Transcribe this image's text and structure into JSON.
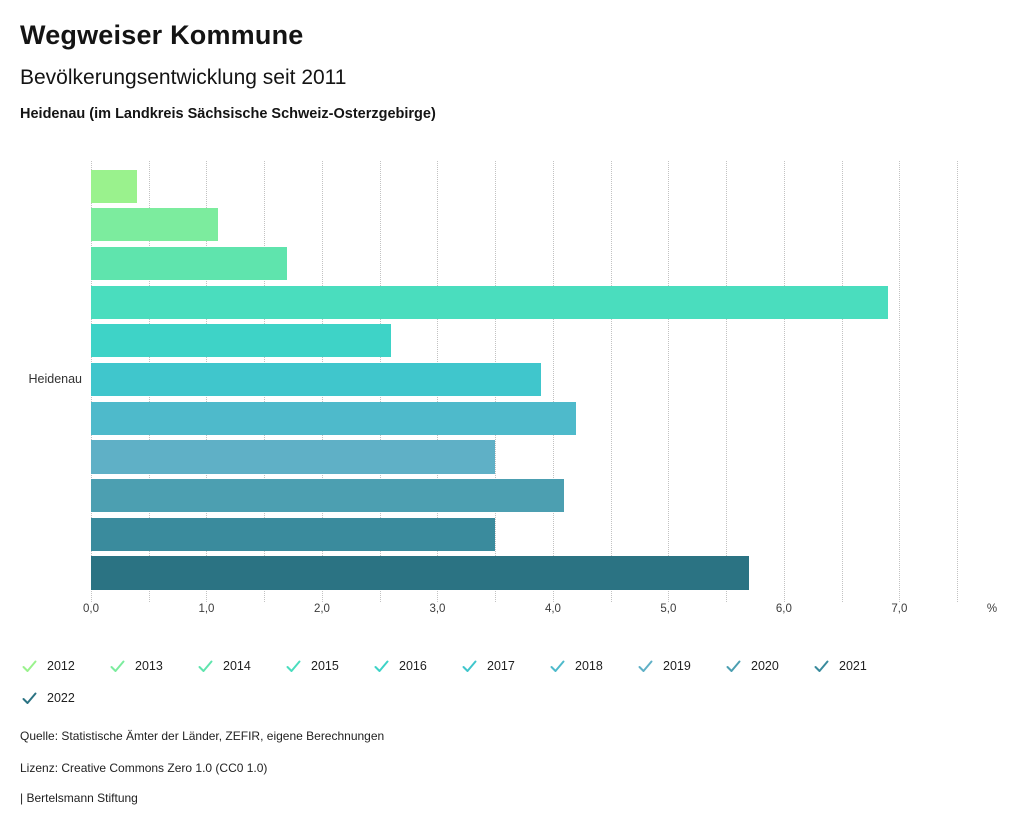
{
  "header": {
    "title": "Wegweiser Kommune",
    "subtitle": "Bevölkerungsentwicklung seit 2011",
    "location": "Heidenau (im Landkreis Sächsische Schweiz-Osterzgebirge)"
  },
  "chart_data": {
    "type": "bar",
    "orientation": "horizontal",
    "category": "Heidenau",
    "title": "Bevölkerungsentwicklung seit 2011",
    "xlabel": "%",
    "ylabel": "Heidenau",
    "xlim": [
      0,
      7.75
    ],
    "grid_step": 0.5,
    "grid_max": 7.5,
    "grid": "dotted-vertical",
    "x_ticks": [
      {
        "value": 0,
        "label": "0,0"
      },
      {
        "value": 1,
        "label": "1,0"
      },
      {
        "value": 2,
        "label": "2,0"
      },
      {
        "value": 3,
        "label": "3,0"
      },
      {
        "value": 4,
        "label": "4,0"
      },
      {
        "value": 5,
        "label": "5,0"
      },
      {
        "value": 6,
        "label": "6,0"
      },
      {
        "value": 7,
        "label": "7,0"
      }
    ],
    "unit_label": "%",
    "series": [
      {
        "name": "2012",
        "value": 0.4,
        "color": "#9af28d"
      },
      {
        "name": "2013",
        "value": 1.1,
        "color": "#7cec9e"
      },
      {
        "name": "2014",
        "value": 1.7,
        "color": "#5fe4ad"
      },
      {
        "name": "2015",
        "value": 6.9,
        "color": "#4addbe"
      },
      {
        "name": "2016",
        "value": 2.6,
        "color": "#3ed3c7"
      },
      {
        "name": "2017",
        "value": 3.9,
        "color": "#40c6cc"
      },
      {
        "name": "2018",
        "value": 4.2,
        "color": "#4ebacb"
      },
      {
        "name": "2019",
        "value": 3.5,
        "color": "#5fb0c6"
      },
      {
        "name": "2020",
        "value": 4.1,
        "color": "#4c9fb1"
      },
      {
        "name": "2021",
        "value": 3.5,
        "color": "#3a8b9d"
      },
      {
        "name": "2022",
        "value": 5.7,
        "color": "#2b7383"
      }
    ],
    "legend_position": "bottom"
  },
  "footer": {
    "source": "Quelle: Statistische Ämter der Länder, ZEFIR, eigene Berechnungen",
    "license": "Lizenz: Creative Commons Zero 1.0 (CC0 1.0)",
    "attribution": "| Bertelsmann Stiftung"
  }
}
